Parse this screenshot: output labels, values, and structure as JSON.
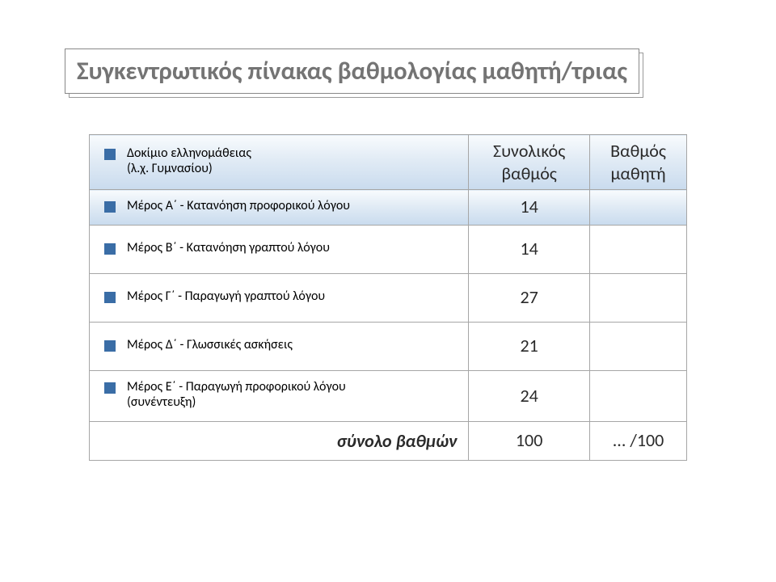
{
  "title": "Συγκεντρωτικός πίνακας βαθμολογίας μαθητή/τριας",
  "colors": {
    "title_text": "#747474",
    "bullet": "#3a6da6",
    "border": "#a6a6a6",
    "header_grad_top": "#f8fbfd",
    "header_grad_mid": "#e1ebf5",
    "header_grad_bot": "#c9dbee"
  },
  "header": {
    "col1_line1": "Δοκίμιο ελληνομάθειας",
    "col1_line2": "(λ.χ. Γυμνασίου)",
    "col2_line1": "Συνολικός",
    "col2_line2": "βαθμός",
    "col3_line1": "Βαθμός",
    "col3_line2": "μαθητή"
  },
  "rows": [
    {
      "label": "Μέρος Α΄ - Κατανόηση προφορικού λόγου",
      "score": "14",
      "grade": ""
    },
    {
      "label": "Μέρος Β΄ - Κατανόηση γραπτού λόγου",
      "score": "14",
      "grade": ""
    },
    {
      "label": "Μέρος Γ΄ - Παραγωγή γραπτού λόγου",
      "score": "27",
      "grade": ""
    },
    {
      "label": "Μέρος Δ΄ - Γλωσσικές ασκήσεις",
      "score": "21",
      "grade": ""
    }
  ],
  "last": {
    "label_line1": "Μέρος Ε΄ - Παραγωγή προφορικού λόγου",
    "label_line2": "(συνέντευξη)",
    "score": "24",
    "grade": ""
  },
  "total": {
    "label": "σύνολο βαθμών",
    "score": "100",
    "grade": "... /100"
  }
}
